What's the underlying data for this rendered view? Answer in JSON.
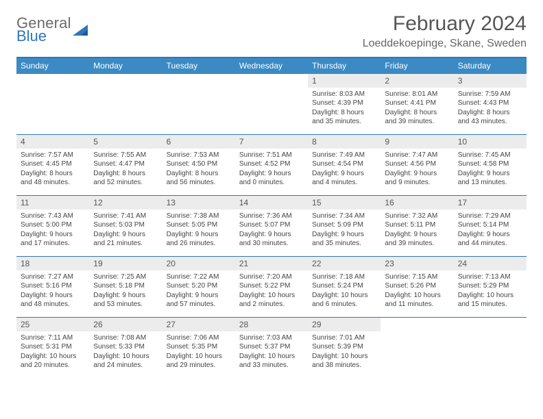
{
  "logo": {
    "line1": "General",
    "line2": "Blue",
    "accent": "#2e77b8"
  },
  "title": "February 2024",
  "location": "Loeddekoepinge, Skane, Sweden",
  "colors": {
    "header_bg": "#3b8ac4",
    "header_border": "#2e77b8",
    "daynum_bg": "#ececec",
    "text": "#444444"
  },
  "dow": [
    "Sunday",
    "Monday",
    "Tuesday",
    "Wednesday",
    "Thursday",
    "Friday",
    "Saturday"
  ],
  "weeks": [
    [
      {
        "n": "",
        "empty": true
      },
      {
        "n": "",
        "empty": true
      },
      {
        "n": "",
        "empty": true
      },
      {
        "n": "",
        "empty": true
      },
      {
        "n": "1",
        "sr": "Sunrise: 8:03 AM",
        "ss": "Sunset: 4:39 PM",
        "dl1": "Daylight: 8 hours",
        "dl2": "and 35 minutes."
      },
      {
        "n": "2",
        "sr": "Sunrise: 8:01 AM",
        "ss": "Sunset: 4:41 PM",
        "dl1": "Daylight: 8 hours",
        "dl2": "and 39 minutes."
      },
      {
        "n": "3",
        "sr": "Sunrise: 7:59 AM",
        "ss": "Sunset: 4:43 PM",
        "dl1": "Daylight: 8 hours",
        "dl2": "and 43 minutes."
      }
    ],
    [
      {
        "n": "4",
        "sr": "Sunrise: 7:57 AM",
        "ss": "Sunset: 4:45 PM",
        "dl1": "Daylight: 8 hours",
        "dl2": "and 48 minutes."
      },
      {
        "n": "5",
        "sr": "Sunrise: 7:55 AM",
        "ss": "Sunset: 4:47 PM",
        "dl1": "Daylight: 8 hours",
        "dl2": "and 52 minutes."
      },
      {
        "n": "6",
        "sr": "Sunrise: 7:53 AM",
        "ss": "Sunset: 4:50 PM",
        "dl1": "Daylight: 8 hours",
        "dl2": "and 56 minutes."
      },
      {
        "n": "7",
        "sr": "Sunrise: 7:51 AM",
        "ss": "Sunset: 4:52 PM",
        "dl1": "Daylight: 9 hours",
        "dl2": "and 0 minutes."
      },
      {
        "n": "8",
        "sr": "Sunrise: 7:49 AM",
        "ss": "Sunset: 4:54 PM",
        "dl1": "Daylight: 9 hours",
        "dl2": "and 4 minutes."
      },
      {
        "n": "9",
        "sr": "Sunrise: 7:47 AM",
        "ss": "Sunset: 4:56 PM",
        "dl1": "Daylight: 9 hours",
        "dl2": "and 9 minutes."
      },
      {
        "n": "10",
        "sr": "Sunrise: 7:45 AM",
        "ss": "Sunset: 4:58 PM",
        "dl1": "Daylight: 9 hours",
        "dl2": "and 13 minutes."
      }
    ],
    [
      {
        "n": "11",
        "sr": "Sunrise: 7:43 AM",
        "ss": "Sunset: 5:00 PM",
        "dl1": "Daylight: 9 hours",
        "dl2": "and 17 minutes."
      },
      {
        "n": "12",
        "sr": "Sunrise: 7:41 AM",
        "ss": "Sunset: 5:03 PM",
        "dl1": "Daylight: 9 hours",
        "dl2": "and 21 minutes."
      },
      {
        "n": "13",
        "sr": "Sunrise: 7:38 AM",
        "ss": "Sunset: 5:05 PM",
        "dl1": "Daylight: 9 hours",
        "dl2": "and 26 minutes."
      },
      {
        "n": "14",
        "sr": "Sunrise: 7:36 AM",
        "ss": "Sunset: 5:07 PM",
        "dl1": "Daylight: 9 hours",
        "dl2": "and 30 minutes."
      },
      {
        "n": "15",
        "sr": "Sunrise: 7:34 AM",
        "ss": "Sunset: 5:09 PM",
        "dl1": "Daylight: 9 hours",
        "dl2": "and 35 minutes."
      },
      {
        "n": "16",
        "sr": "Sunrise: 7:32 AM",
        "ss": "Sunset: 5:11 PM",
        "dl1": "Daylight: 9 hours",
        "dl2": "and 39 minutes."
      },
      {
        "n": "17",
        "sr": "Sunrise: 7:29 AM",
        "ss": "Sunset: 5:14 PM",
        "dl1": "Daylight: 9 hours",
        "dl2": "and 44 minutes."
      }
    ],
    [
      {
        "n": "18",
        "sr": "Sunrise: 7:27 AM",
        "ss": "Sunset: 5:16 PM",
        "dl1": "Daylight: 9 hours",
        "dl2": "and 48 minutes."
      },
      {
        "n": "19",
        "sr": "Sunrise: 7:25 AM",
        "ss": "Sunset: 5:18 PM",
        "dl1": "Daylight: 9 hours",
        "dl2": "and 53 minutes."
      },
      {
        "n": "20",
        "sr": "Sunrise: 7:22 AM",
        "ss": "Sunset: 5:20 PM",
        "dl1": "Daylight: 9 hours",
        "dl2": "and 57 minutes."
      },
      {
        "n": "21",
        "sr": "Sunrise: 7:20 AM",
        "ss": "Sunset: 5:22 PM",
        "dl1": "Daylight: 10 hours",
        "dl2": "and 2 minutes."
      },
      {
        "n": "22",
        "sr": "Sunrise: 7:18 AM",
        "ss": "Sunset: 5:24 PM",
        "dl1": "Daylight: 10 hours",
        "dl2": "and 6 minutes."
      },
      {
        "n": "23",
        "sr": "Sunrise: 7:15 AM",
        "ss": "Sunset: 5:26 PM",
        "dl1": "Daylight: 10 hours",
        "dl2": "and 11 minutes."
      },
      {
        "n": "24",
        "sr": "Sunrise: 7:13 AM",
        "ss": "Sunset: 5:29 PM",
        "dl1": "Daylight: 10 hours",
        "dl2": "and 15 minutes."
      }
    ],
    [
      {
        "n": "25",
        "sr": "Sunrise: 7:11 AM",
        "ss": "Sunset: 5:31 PM",
        "dl1": "Daylight: 10 hours",
        "dl2": "and 20 minutes."
      },
      {
        "n": "26",
        "sr": "Sunrise: 7:08 AM",
        "ss": "Sunset: 5:33 PM",
        "dl1": "Daylight: 10 hours",
        "dl2": "and 24 minutes."
      },
      {
        "n": "27",
        "sr": "Sunrise: 7:06 AM",
        "ss": "Sunset: 5:35 PM",
        "dl1": "Daylight: 10 hours",
        "dl2": "and 29 minutes."
      },
      {
        "n": "28",
        "sr": "Sunrise: 7:03 AM",
        "ss": "Sunset: 5:37 PM",
        "dl1": "Daylight: 10 hours",
        "dl2": "and 33 minutes."
      },
      {
        "n": "29",
        "sr": "Sunrise: 7:01 AM",
        "ss": "Sunset: 5:39 PM",
        "dl1": "Daylight: 10 hours",
        "dl2": "and 38 minutes."
      },
      {
        "n": "",
        "empty": true
      },
      {
        "n": "",
        "empty": true
      }
    ]
  ]
}
